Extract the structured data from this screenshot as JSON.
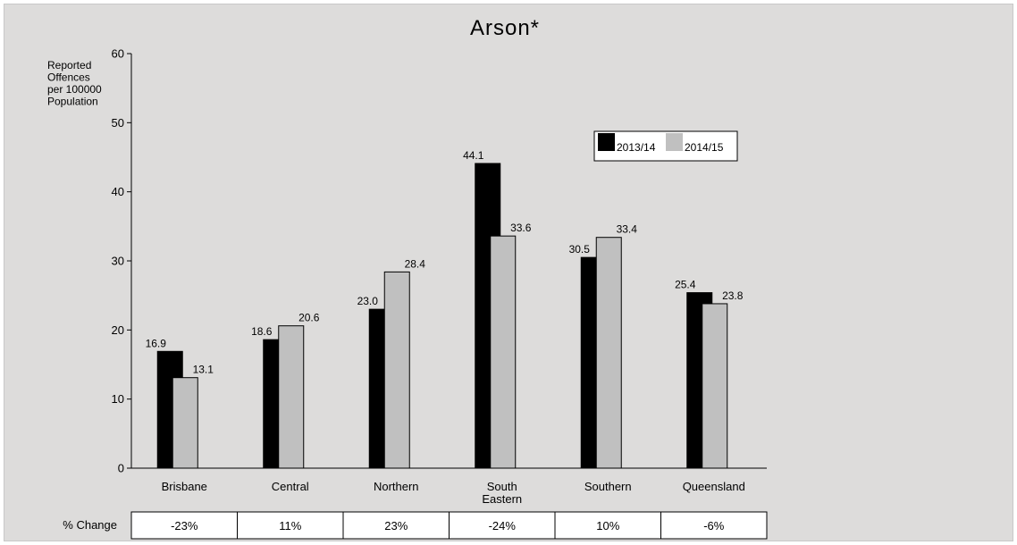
{
  "chart_data": {
    "type": "bar",
    "title": "Arson*",
    "ylabel": [
      "Reported",
      "Offences",
      "per 100000",
      "Population"
    ],
    "xlabel": "",
    "ylim": [
      0,
      60
    ],
    "yticks": [
      0,
      10,
      20,
      30,
      40,
      50,
      60
    ],
    "categories": [
      [
        "Brisbane"
      ],
      [
        "Central"
      ],
      [
        "Northern"
      ],
      [
        "South",
        "Eastern"
      ],
      [
        "Southern"
      ],
      [
        "Queensland"
      ]
    ],
    "series": [
      {
        "name": "2013/14",
        "color": "#000000",
        "values": [
          16.9,
          18.6,
          23.0,
          44.1,
          30.5,
          25.4
        ],
        "labels": [
          "16.9",
          "18.6",
          "23.0",
          "44.1",
          "30.5",
          "25.4"
        ]
      },
      {
        "name": "2014/15",
        "color": "#c0c0c0",
        "values": [
          13.1,
          20.6,
          28.4,
          33.6,
          33.4,
          23.8
        ],
        "labels": [
          "13.1",
          "20.6",
          "28.4",
          "33.6",
          "33.4",
          "23.8"
        ]
      }
    ],
    "legend_position": "top-right",
    "grid": false
  },
  "change_table": {
    "label": "% Change",
    "values": [
      "-23%",
      "11%",
      "23%",
      "-24%",
      "10%",
      "-6%"
    ]
  }
}
